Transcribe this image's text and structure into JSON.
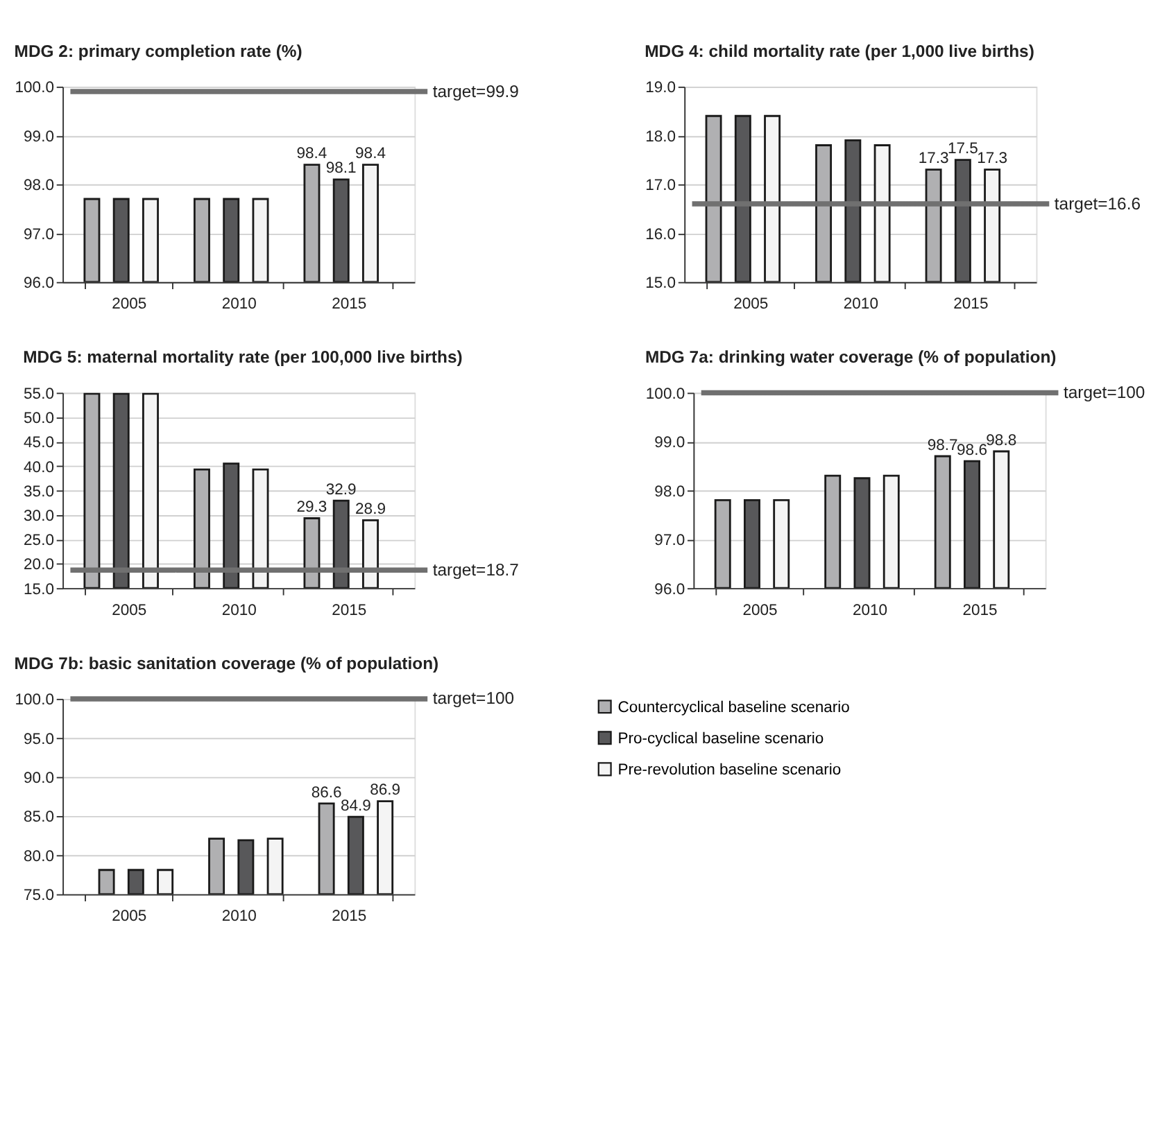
{
  "chart_data": [
    {
      "type": "bar",
      "title": "MDG 2: primary completion rate (%)",
      "categories": [
        "2005",
        "2010",
        "2015"
      ],
      "series": [
        {
          "color": "#b0b0b2",
          "values": [
            97.7,
            97.7,
            98.4
          ],
          "value_labels": [
            null,
            null,
            "98.4"
          ]
        },
        {
          "color": "#58585a",
          "values": [
            97.7,
            97.7,
            98.1
          ],
          "value_labels": [
            null,
            null,
            "98.1"
          ]
        },
        {
          "color": "#f4f4f4",
          "values": [
            97.7,
            97.7,
            98.4
          ],
          "value_labels": [
            null,
            null,
            "98.4"
          ]
        }
      ],
      "ylim": [
        96,
        100
      ],
      "yticks": [
        {
          "value": 96,
          "label": "96.0"
        },
        {
          "value": 97,
          "label": "97.0"
        },
        {
          "value": 98,
          "label": "98.0"
        },
        {
          "value": 99,
          "label": "99.0"
        },
        {
          "value": 100,
          "label": "100.0"
        }
      ],
      "grid": "y",
      "ref_lines": [
        {
          "axis": "y",
          "value": 99.9,
          "label": "target=99.9",
          "color": "#707070"
        }
      ]
    },
    {
      "type": "bar",
      "title": "MDG 4: child mortality rate (per 1,000 live births)",
      "categories": [
        "2005",
        "2010",
        "2015"
      ],
      "series": [
        {
          "color": "#b0b0b2",
          "values": [
            18.4,
            17.8,
            17.3
          ],
          "value_labels": [
            null,
            null,
            "17.3"
          ]
        },
        {
          "color": "#58585a",
          "values": [
            18.4,
            17.9,
            17.5
          ],
          "value_labels": [
            null,
            null,
            "17.5"
          ]
        },
        {
          "color": "#f4f4f4",
          "values": [
            18.4,
            17.8,
            17.3
          ],
          "value_labels": [
            null,
            null,
            "17.3"
          ]
        }
      ],
      "ylim": [
        15,
        19
      ],
      "yticks": [
        {
          "value": 15,
          "label": "15.0"
        },
        {
          "value": 16,
          "label": "16.0"
        },
        {
          "value": 17,
          "label": "17.0"
        },
        {
          "value": 18,
          "label": "18.0"
        },
        {
          "value": 19,
          "label": "19.0"
        }
      ],
      "grid": "y",
      "ref_lines": [
        {
          "axis": "y",
          "value": 16.6,
          "label": "target=16.6",
          "color": "#707070"
        }
      ]
    },
    {
      "type": "bar",
      "title": "MDG 5: maternal mortality rate (per 100,000 live births)",
      "categories": [
        "2005",
        "2010",
        "2015"
      ],
      "series": [
        {
          "color": "#b0b0b2",
          "values": [
            54.8,
            39.3,
            29.3
          ],
          "value_labels": [
            null,
            null,
            "29.3"
          ]
        },
        {
          "color": "#58585a",
          "values": [
            54.8,
            40.5,
            32.9
          ],
          "value_labels": [
            null,
            null,
            "32.9"
          ]
        },
        {
          "color": "#f4f4f4",
          "values": [
            54.8,
            39.3,
            28.9
          ],
          "value_labels": [
            null,
            null,
            "28.9"
          ]
        }
      ],
      "ylim": [
        15,
        55
      ],
      "yticks": [
        {
          "value": 15,
          "label": "15.0"
        },
        {
          "value": 20,
          "label": "20.0"
        },
        {
          "value": 25,
          "label": "25.0"
        },
        {
          "value": 30,
          "label": "30.0"
        },
        {
          "value": 35,
          "label": "35.0"
        },
        {
          "value": 40,
          "label": "40.0"
        },
        {
          "value": 45,
          "label": "45.0"
        },
        {
          "value": 50,
          "label": "50.0"
        },
        {
          "value": 55,
          "label": "55.0"
        }
      ],
      "grid": "y",
      "ref_lines": [
        {
          "axis": "y",
          "value": 18.7,
          "label": "target=18.7",
          "color": "#707070"
        }
      ]
    },
    {
      "type": "bar",
      "title": "MDG 7a: drinking water coverage (% of population)",
      "categories": [
        "2005",
        "2010",
        "2015"
      ],
      "series": [
        {
          "color": "#b0b0b2",
          "values": [
            97.8,
            98.3,
            98.7
          ],
          "value_labels": [
            null,
            null,
            "98.7"
          ]
        },
        {
          "color": "#58585a",
          "values": [
            97.8,
            98.25,
            98.6
          ],
          "value_labels": [
            null,
            null,
            "98.6"
          ]
        },
        {
          "color": "#f4f4f4",
          "values": [
            97.8,
            98.3,
            98.8
          ],
          "value_labels": [
            null,
            null,
            "98.8"
          ]
        }
      ],
      "ylim": [
        96,
        100
      ],
      "yticks": [
        {
          "value": 96,
          "label": "96.0"
        },
        {
          "value": 97,
          "label": "97.0"
        },
        {
          "value": 98,
          "label": "98.0"
        },
        {
          "value": 99,
          "label": "99.0"
        },
        {
          "value": 100,
          "label": "100.0"
        }
      ],
      "grid": "y",
      "ref_lines": [
        {
          "axis": "y",
          "value": 100,
          "label": "target=100",
          "color": "#707070"
        }
      ]
    },
    {
      "type": "bar",
      "title": "MDG 7b: basic sanitation coverage (% of population)",
      "categories": [
        "2005",
        "2010",
        "2015"
      ],
      "series": [
        {
          "name": "Countercyclical baseline scenario",
          "color": "#b0b0b2",
          "values": [
            78.1,
            82.1,
            86.6
          ],
          "value_labels": [
            null,
            null,
            "86.6"
          ]
        },
        {
          "name": "Pro-cyclical baseline scenario",
          "color": "#58585a",
          "values": [
            78.1,
            81.9,
            84.9
          ],
          "value_labels": [
            null,
            null,
            "84.9"
          ]
        },
        {
          "name": "Pre-revolution baseline scenario",
          "color": "#f4f4f4",
          "values": [
            78.1,
            82.1,
            86.9
          ],
          "value_labels": [
            null,
            null,
            "86.9"
          ]
        }
      ],
      "ylim": [
        75,
        100
      ],
      "yticks": [
        {
          "value": 75,
          "label": "75.0"
        },
        {
          "value": 80,
          "label": "80.0"
        },
        {
          "value": 85,
          "label": "85.0"
        },
        {
          "value": 90,
          "label": "90.0"
        },
        {
          "value": 95,
          "label": "95.0"
        },
        {
          "value": 100,
          "label": "100.0"
        }
      ],
      "grid": "y",
      "legend": "right",
      "ref_lines": [
        {
          "axis": "y",
          "value": 100,
          "label": "target=100",
          "color": "#707070"
        }
      ]
    }
  ]
}
